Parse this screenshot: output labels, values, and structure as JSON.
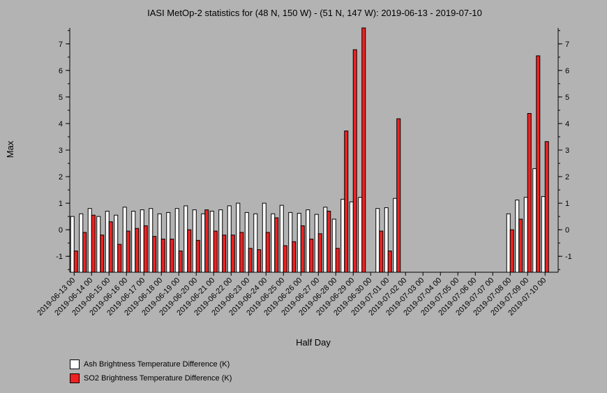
{
  "chart_data": {
    "type": "bar",
    "title": "IASI MetOp-2 statistics for (48 N, 150 W) - (51 N, 147 W): 2019-06-13 - 2019-07-10",
    "xlabel": "Half Day",
    "ylabel": "Max",
    "ylim": [
      -1.6,
      7.6
    ],
    "yticks": [
      -1,
      0,
      1,
      2,
      3,
      4,
      5,
      6,
      7
    ],
    "x_tick_labels": [
      "2019-06-13 00",
      "2019-06-14 00",
      "2019-06-15 00",
      "2019-06-16 00",
      "2019-06-17 00",
      "2019-06-18 00",
      "2019-06-19 00",
      "2019-06-20 00",
      "2019-06-21 00",
      "2019-06-22 00",
      "2019-06-23 00",
      "2019-06-24 00",
      "2019-06-25 00",
      "2019-06-26 00",
      "2019-06-27 00",
      "2019-06-28 00",
      "2019-06-29 00",
      "2019-06-30 00",
      "2019-07-01 00",
      "2019-07-02 00",
      "2019-07-03 00",
      "2019-07-04 00",
      "2019-07-05 00",
      "2019-07-06 00",
      "2019-07-07 00",
      "2019-07-08 00",
      "2019-07-09 00",
      "2019-07-10 00"
    ],
    "n_slots": 56,
    "legend_placement": "bottom-left",
    "series": [
      {
        "name": "Ash Brightness Temperature Difference (K)",
        "color": "#ffffff",
        "values": [
          0.5,
          0.6,
          0.8,
          0.5,
          0.7,
          0.55,
          0.85,
          0.7,
          0.75,
          0.8,
          0.6,
          0.65,
          0.8,
          0.9,
          0.75,
          0.6,
          0.7,
          0.75,
          0.9,
          1.0,
          0.65,
          0.6,
          1.0,
          0.6,
          0.92,
          0.65,
          0.62,
          0.75,
          0.58,
          0.85,
          0.4,
          1.15,
          1.05,
          1.22,
          null,
          0.8,
          0.83,
          1.18,
          null,
          null,
          null,
          null,
          null,
          null,
          null,
          null,
          null,
          null,
          null,
          null,
          0.6,
          1.12,
          1.22,
          2.3,
          1.25,
          null
        ]
      },
      {
        "name": "SO2 Brightness Temperature Difference (K)",
        "color": "#ee2222",
        "values": [
          -0.8,
          -0.1,
          0.55,
          -0.2,
          0.3,
          -0.55,
          -0.05,
          0.05,
          0.15,
          -0.25,
          -0.35,
          -0.35,
          -0.8,
          0.0,
          -0.4,
          0.75,
          -0.05,
          -0.2,
          -0.2,
          -0.1,
          -0.7,
          -0.75,
          -0.1,
          0.45,
          -0.6,
          -0.45,
          0.15,
          -0.35,
          -0.15,
          0.7,
          -0.7,
          3.72,
          6.78,
          7.6,
          null,
          -0.05,
          -0.8,
          4.18,
          null,
          null,
          null,
          null,
          null,
          null,
          null,
          null,
          null,
          null,
          null,
          null,
          0.0,
          0.4,
          4.38,
          6.55,
          3.32,
          null
        ]
      }
    ]
  }
}
